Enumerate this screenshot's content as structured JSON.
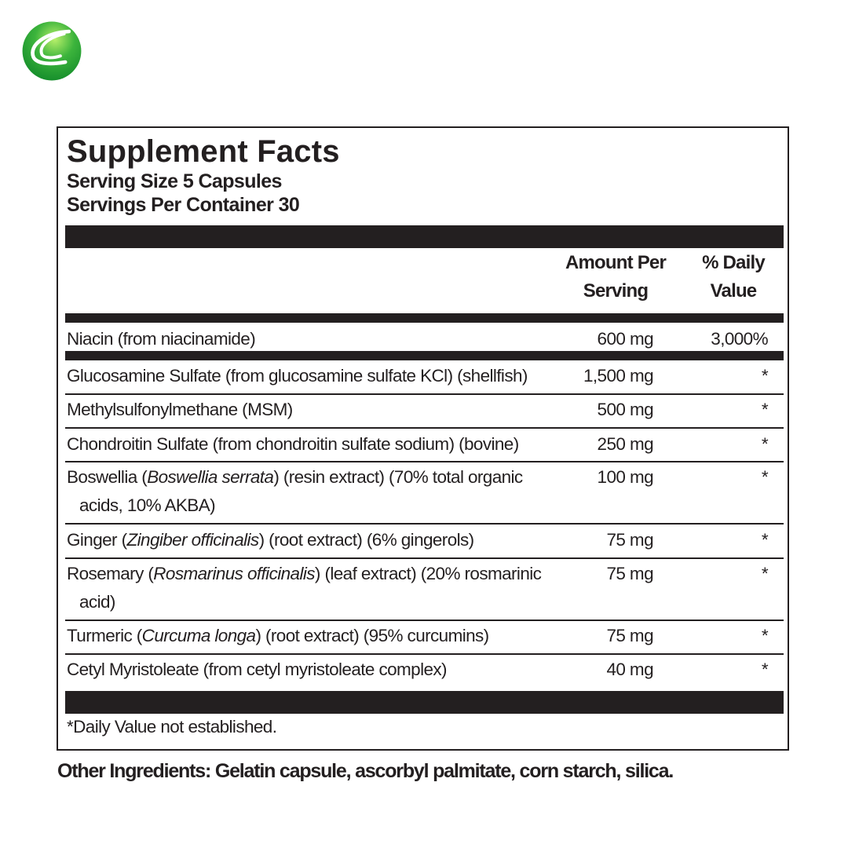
{
  "brand": {
    "logo_icon": "green-sphere-swoosh-logo",
    "color": "#3cb43c"
  },
  "label": {
    "title": "Supplement Facts",
    "serving_size": "Serving Size 5 Capsules",
    "servings_per_container": "Servings Per Container 30",
    "header": {
      "amount_line1": "Amount Per",
      "amount_line2": "Serving",
      "dv_line1": "% Daily",
      "dv_line2": "Value"
    },
    "rows": [
      {
        "name": "Niacin (from niacinamide)",
        "amount": "600 mg",
        "dv": "3,000%"
      },
      {
        "name": "Glucosamine Sulfate (from glucosamine sulfate KCl) (shellfish)",
        "amount": "1,500 mg",
        "dv": "*"
      },
      {
        "name": "Methylsulfonylmethane (MSM)",
        "amount": "500 mg",
        "dv": "*"
      },
      {
        "name": "Chondroitin Sulfate (from chondroitin sulfate sodium) (bovine)",
        "amount": "250 mg",
        "dv": "*"
      },
      {
        "name_pre": "Boswellia (",
        "name_italic": "Boswellia serrata",
        "name_post": ") (resin extract) (70% total organic",
        "name_cont": "acids, 10% AKBA)",
        "amount": "100 mg",
        "dv": "*"
      },
      {
        "name_pre": "Ginger (",
        "name_italic": "Zingiber officinalis",
        "name_post": ") (root extract) (6% gingerols)",
        "amount": "75 mg",
        "dv": "*"
      },
      {
        "name_pre": "Rosemary (",
        "name_italic": "Rosmarinus officinalis",
        "name_post": ") (leaf extract) (20% rosmarinic",
        "name_cont": "acid)",
        "amount": "75 mg",
        "dv": "*"
      },
      {
        "name_pre": "Turmeric (",
        "name_italic": "Curcuma longa",
        "name_post": ") (root extract) (95% curcumins)",
        "amount": "75 mg",
        "dv": "*"
      },
      {
        "name": "Cetyl Myristoleate (from cetyl myristoleate complex)",
        "amount": "40 mg",
        "dv": "*"
      }
    ],
    "footnote": "*Daily Value not established."
  },
  "other_ingredients": {
    "label": "Other Ingredients:",
    "text": " Gelatin capsule, ascorbyl palmitate, corn starch, silica."
  }
}
